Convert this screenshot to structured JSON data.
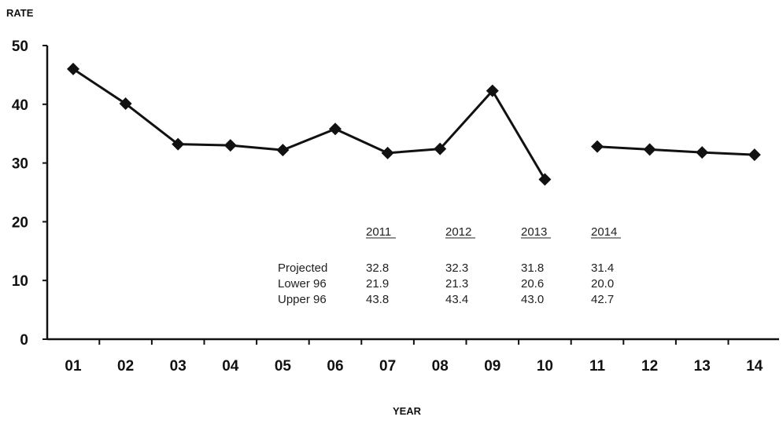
{
  "chart_data": {
    "type": "line",
    "ylabel": "RATE",
    "xlabel": "YEAR",
    "ylim": [
      0,
      50
    ],
    "yticks": [
      0,
      10,
      20,
      30,
      40,
      50
    ],
    "categories": [
      "01",
      "02",
      "03",
      "04",
      "05",
      "06",
      "07",
      "08",
      "09",
      "10",
      "11",
      "12",
      "13",
      "14"
    ],
    "series": [
      {
        "values": [
          46.0,
          40.1,
          33.2,
          33.0,
          32.2,
          35.8,
          31.7,
          32.4,
          42.3,
          27.2,
          null,
          null,
          null,
          null
        ]
      },
      {
        "values": [
          null,
          null,
          null,
          null,
          null,
          null,
          null,
          null,
          null,
          null,
          32.8,
          32.3,
          31.8,
          31.4
        ]
      }
    ],
    "grid": false,
    "marker": "diamond",
    "color": "#111111",
    "projection_table": {
      "columns": [
        "2011",
        "2012",
        "2013",
        "2014"
      ],
      "rows": [
        {
          "label": "Projected",
          "values": [
            "32.8",
            "32.3",
            "31.8",
            "31.4"
          ]
        },
        {
          "label": "Lower 96",
          "values": [
            "21.9",
            "21.3",
            "20.6",
            "20.0"
          ]
        },
        {
          "label": "Upper 96",
          "values": [
            "43.8",
            "43.4",
            "43.0",
            "42.7"
          ]
        }
      ]
    }
  }
}
